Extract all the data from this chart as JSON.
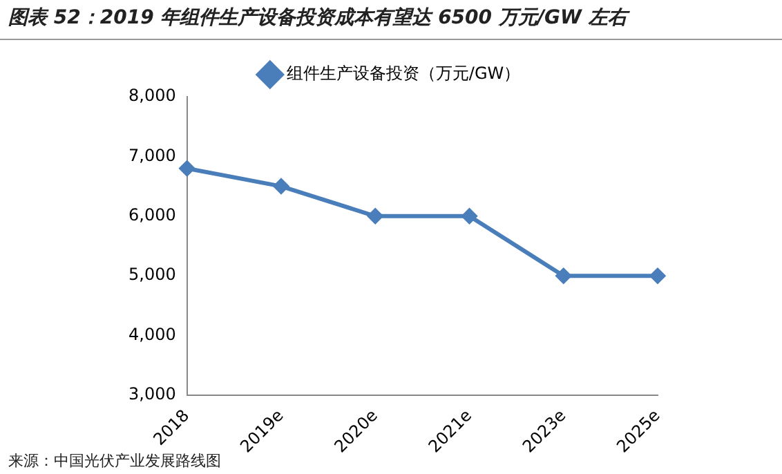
{
  "chart_data": {
    "type": "line",
    "title": "图表 52：2019 年组件生产设备投资成本有望达 6500 万元/GW 左右",
    "categories": [
      "2018",
      "2019e",
      "2020e",
      "2021e",
      "2023e",
      "2025e"
    ],
    "series": [
      {
        "name": "组件生产设备投资（万元/GW）",
        "color": "#4a7ebb",
        "values": [
          6800,
          6500,
          6000,
          6000,
          5000,
          5000
        ]
      }
    ],
    "ylim": [
      3000,
      8000
    ],
    "yticks": [
      {
        "value": 3000,
        "label": "3,000"
      },
      {
        "value": 4000,
        "label": "4,000"
      },
      {
        "value": 5000,
        "label": "5,000"
      },
      {
        "value": 6000,
        "label": "6,000"
      },
      {
        "value": 7000,
        "label": "7,000"
      },
      {
        "value": 8000,
        "label": "8,000"
      }
    ],
    "grid": false,
    "legend": "top",
    "marker": "diamond",
    "line_style": "solid",
    "annotations": [
      "来源：中国光伏产业发展路线图"
    ]
  }
}
